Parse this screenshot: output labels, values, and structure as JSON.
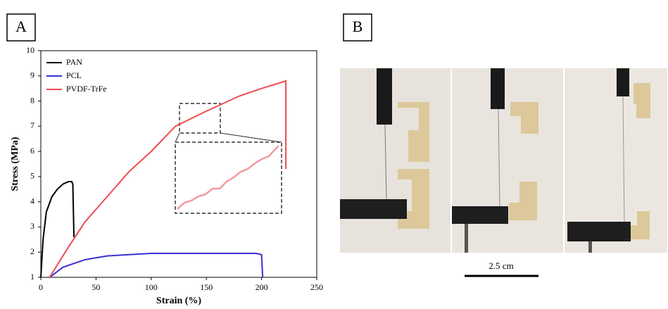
{
  "panel_labels": [
    "A",
    "B"
  ],
  "scale_bar": "2.5 cm",
  "chart_data": {
    "type": "line",
    "x_label": "Strain (%)",
    "y_label": "Stress (MPa)",
    "xlim": [
      0,
      250
    ],
    "xticks": [
      0,
      50,
      100,
      150,
      200,
      250
    ],
    "ylim": [
      1,
      10
    ],
    "yticks": [
      1,
      2,
      3,
      4,
      5,
      6,
      7,
      8,
      9,
      10
    ],
    "legend": "upper left",
    "series": [
      {
        "name": "PAN",
        "color": "#000000",
        "x": [
          0,
          2,
          5,
          10,
          15,
          20,
          25,
          28,
          29,
          30
        ],
        "values": [
          1,
          2.5,
          3.6,
          4.2,
          4.5,
          4.7,
          4.8,
          4.8,
          4.7,
          2.6
        ]
      },
      {
        "name": "PCL",
        "color": "#3a2fd6",
        "x": [
          8,
          20,
          40,
          60,
          80,
          100,
          150,
          195,
          200,
          201
        ],
        "values": [
          1,
          1.4,
          1.7,
          1.85,
          1.9,
          1.95,
          1.95,
          1.95,
          1.9,
          1
        ]
      },
      {
        "name": "PVDF-TrFe",
        "color": "#ec4c50",
        "x": [
          8,
          15,
          25,
          40,
          60,
          80,
          100,
          122,
          150,
          180,
          200,
          215,
          222,
          222
        ],
        "values": [
          1,
          1.5,
          2.2,
          3.2,
          4.2,
          5.2,
          6.0,
          7.0,
          7.6,
          8.2,
          8.5,
          8.7,
          8.8,
          5.3
        ]
      }
    ]
  }
}
